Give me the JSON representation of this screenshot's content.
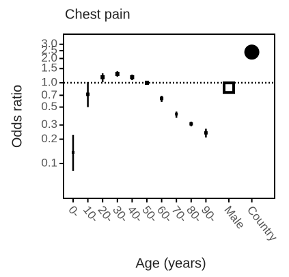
{
  "chart_data": {
    "type": "scatter",
    "title": "Chest pain",
    "xlabel": "Age (years)",
    "ylabel": "Odds ratio",
    "categories": [
      "0-",
      "10-",
      "20-",
      "30-",
      "40-",
      "50-",
      "60-",
      "70-",
      "80-",
      "90-",
      "Male",
      "Country"
    ],
    "values": [
      0.137,
      0.72,
      1.17,
      1.29,
      1.17,
      1.0,
      0.64,
      0.41,
      0.31,
      0.24,
      0.87,
      2.4
    ],
    "upper": [
      0.227,
      1.02,
      1.31,
      1.39,
      1.26,
      1.04,
      0.69,
      0.44,
      0.33,
      0.27,
      0.92,
      2.45
    ],
    "lower": [
      0.081,
      0.5,
      1.02,
      1.19,
      1.08,
      0.96,
      0.58,
      0.37,
      0.29,
      0.21,
      0.82,
      2.35
    ],
    "sizes": [
      4,
      5,
      6,
      6,
      6,
      6,
      5,
      4,
      5,
      5,
      14,
      22
    ],
    "markers": [
      "square",
      "square",
      "square",
      "square",
      "square",
      "square",
      "square",
      "square",
      "square",
      "square",
      "square",
      "circle"
    ],
    "color": "#000000",
    "log_y": true,
    "reference_line": 1,
    "ylim": [
      0.037,
      4.0
    ],
    "yticks": [
      0.1,
      0.2,
      0.3,
      0.5,
      0.7,
      {
        "value": 1,
        "label": "1.0"
      },
      1.5,
      {
        "value": 2,
        "label": "2.0"
      },
      2.5,
      {
        "value": 3,
        "label": "3.0"
      }
    ]
  }
}
